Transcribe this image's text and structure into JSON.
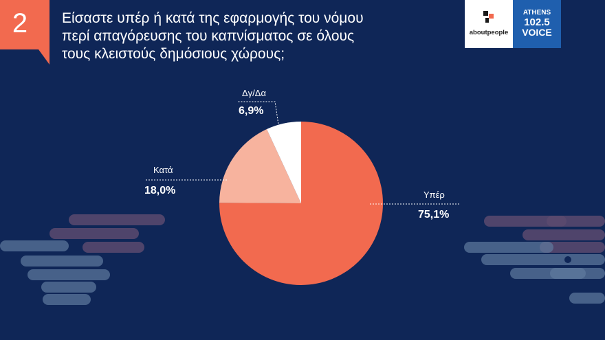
{
  "slide_number": "2",
  "title": "Είσαστε υπέρ ή κατά της  εφαρμογής του νόμου\nπερί απαγόρευσης του καπνίσματος σε όλους\nτους κλειστούς δημόσιους χώρους;",
  "logos": {
    "aboutpeople": "aboutpeople",
    "athens_voice": [
      "ATHENS",
      "102.5",
      "VOICE"
    ]
  },
  "colors": {
    "background": "#0f2657",
    "accent": "#f26a4f",
    "against": "#f7b39e",
    "dontknow": "#ffffff",
    "decor_pink": "#5b4a6e",
    "decor_blue": "#5f7b9e"
  },
  "chart_data": {
    "type": "pie",
    "title": "",
    "slices": [
      {
        "label": "Υπέρ",
        "value": 75.1,
        "display": "75,1%",
        "color": "#f26a4f"
      },
      {
        "label": "Κατά",
        "value": 18.0,
        "display": "18,0%",
        "color": "#f7b39e"
      },
      {
        "label": "Δγ/Δα",
        "value": 6.9,
        "display": "6,9%",
        "color": "#ffffff"
      }
    ],
    "start": "12 o'clock",
    "direction": "clockwise"
  }
}
